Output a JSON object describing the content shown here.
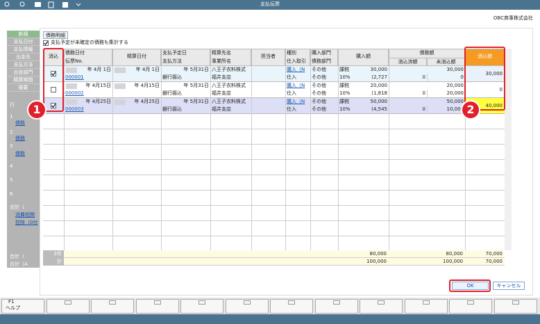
{
  "title_bar": {
    "title": "支払伝票"
  },
  "company": "OBC商事株式会社",
  "sidebar": {
    "top": [
      "新規",
      "支払日付",
      "支払情報",
      "出金先",
      "支払方法",
      "出金部門",
      "精算期間",
      "摘要"
    ],
    "bottom": [
      "行",
      "1",
      "債務",
      "2",
      "債務",
      "3",
      "債務",
      "4",
      "5",
      "6",
      "合計（",
      "消費税関",
      "控除（0付",
      "合計（",
      "合計（A"
    ]
  },
  "dialog": {
    "tab": "債務明細",
    "option": {
      "label": "支払予定が未確定の債務も集計する",
      "checked": true
    },
    "header": [
      [
        "消込"
      ],
      [
        "債務日付",
        "伝票No."
      ],
      [
        "精算日付"
      ],
      [
        "支払予定日",
        "支払方法"
      ],
      [
        "精算先名",
        "事業所名"
      ],
      [
        "担当者"
      ],
      [
        "種別",
        "仕入取引"
      ],
      [
        "購入部門",
        "債務部門"
      ],
      [
        "購入額"
      ],
      [
        "債務額"
      ],
      [
        "消込額"
      ]
    ],
    "sub_header": [
      "消込済額",
      "未消込額"
    ],
    "rows": [
      {
        "checked": true,
        "line1": [
          "年 4月 1日",
          "年 4月 1日",
          "年 5月31日",
          "八王子衣料株式",
          null,
          "購入（N",
          "その他",
          "課税",
          "30,000",
          null,
          "30,000"
        ],
        "line2": [
          "000001",
          null,
          "銀行振込",
          "福井支店",
          null,
          "仕入",
          "その他",
          "10%",
          "(2,727",
          "0",
          "0"
        ],
        "cleared": "30,000"
      },
      {
        "checked": false,
        "line1": [
          "年 4月15日",
          "年 4月15日",
          "年 5月31日",
          "八王子衣料株式",
          null,
          "購入（N",
          "その他",
          "課税",
          "20,000",
          null,
          "20,000"
        ],
        "line2": [
          "000002",
          null,
          "銀行振込",
          "福井支店",
          null,
          "仕入",
          "その他",
          "10%",
          "(1,818",
          "0",
          "20,000"
        ],
        "cleared": "0"
      },
      {
        "checked": true,
        "line1": [
          "年 4月25日",
          "年 4月25日",
          "年 5月31日",
          "八王子衣料株式",
          null,
          "購入（N",
          "その他",
          "課税",
          "50,000",
          null,
          "50,000"
        ],
        "line2": [
          "000003",
          null,
          "銀行振込",
          "福井支店",
          null,
          "仕入",
          "その他",
          "10%",
          "(4,545",
          "0",
          "10,000"
        ],
        "cleared": "40,000"
      }
    ],
    "totals": [
      {
        "label": "2件",
        "purchase": "80,000",
        "debt": "80,000",
        "cleared": "70,000"
      },
      {
        "label": "計",
        "purchase": "100,000",
        "debt": "100,000",
        "cleared": "70,000"
      }
    ],
    "buttons": {
      "ok": "OK",
      "cancel": "キャンセル"
    }
  },
  "function_keys": [
    {
      "key": "F1",
      "label": "ヘルプ"
    }
  ],
  "badges": [
    "1",
    "2"
  ]
}
